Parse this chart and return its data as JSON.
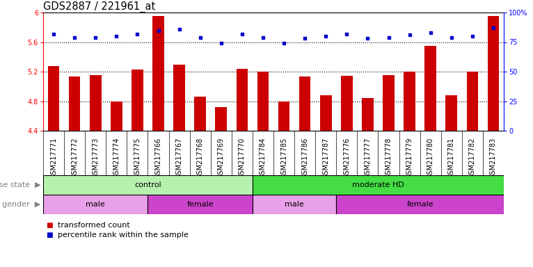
{
  "title": "GDS2887 / 221961_at",
  "samples": [
    "GSM217771",
    "GSM217772",
    "GSM217773",
    "GSM217774",
    "GSM217775",
    "GSM217766",
    "GSM217767",
    "GSM217768",
    "GSM217769",
    "GSM217770",
    "GSM217784",
    "GSM217785",
    "GSM217786",
    "GSM217787",
    "GSM217776",
    "GSM217777",
    "GSM217778",
    "GSM217779",
    "GSM217780",
    "GSM217781",
    "GSM217782",
    "GSM217783"
  ],
  "bar_values": [
    5.28,
    5.13,
    5.15,
    4.8,
    5.23,
    5.95,
    5.29,
    4.86,
    4.72,
    5.24,
    5.2,
    4.8,
    5.13,
    4.88,
    5.14,
    4.84,
    5.15,
    5.2,
    5.55,
    4.88,
    5.2,
    5.95
  ],
  "percentile_values": [
    82,
    79,
    79,
    80,
    82,
    85,
    86,
    79,
    74,
    82,
    79,
    74,
    78,
    80,
    82,
    78,
    79,
    81,
    83,
    79,
    80,
    87
  ],
  "bar_color": "#cc0000",
  "dot_color": "#0000cc",
  "ylim_left": [
    4.4,
    6.0
  ],
  "ylim_right": [
    0,
    100
  ],
  "yticks_left": [
    4.4,
    4.8,
    5.2,
    5.6,
    6.0
  ],
  "ytick_labels_left": [
    "4.4",
    "4.8",
    "5.2",
    "5.6",
    "6"
  ],
  "yticks_right": [
    0,
    25,
    50,
    75,
    100
  ],
  "ytick_labels_right": [
    "0",
    "25",
    "50",
    "75",
    "100%"
  ],
  "dotted_lines": [
    4.8,
    5.2,
    5.6
  ],
  "disease_groups": [
    {
      "label": "control",
      "start": 0,
      "end": 9,
      "color": "#b8f0b0"
    },
    {
      "label": "moderate HD",
      "start": 10,
      "end": 21,
      "color": "#44dd44"
    }
  ],
  "gender_groups": [
    {
      "label": "male",
      "start": 0,
      "end": 4,
      "color": "#e8a0e8"
    },
    {
      "label": "female",
      "start": 5,
      "end": 9,
      "color": "#cc44cc"
    },
    {
      "label": "male",
      "start": 10,
      "end": 13,
      "color": "#e8a0e8"
    },
    {
      "label": "female",
      "start": 14,
      "end": 21,
      "color": "#cc44cc"
    }
  ],
  "bar_width": 0.55,
  "tick_fontsize": 7.0,
  "label_fontsize": 8.0,
  "title_fontsize": 10.5,
  "xtick_bg_color": "#d0d0d0"
}
